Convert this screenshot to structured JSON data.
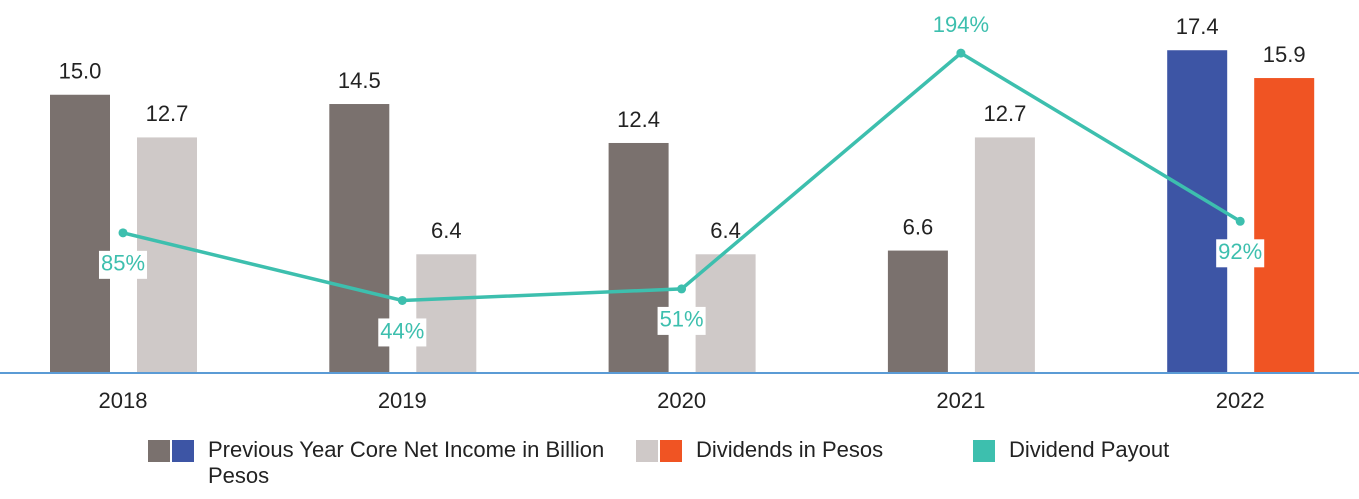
{
  "chart_data": {
    "type": "bar-line",
    "categories": [
      "2018",
      "2019",
      "2020",
      "2021",
      "2022"
    ],
    "series": [
      {
        "name": "Previous Year Core Net Income in Billion Pesos",
        "type": "bar",
        "colors": [
          "#7a716e",
          "#7a716e",
          "#7a716e",
          "#7a716e",
          "#3d55a5"
        ],
        "values": [
          15.0,
          14.5,
          12.4,
          6.6,
          17.4
        ],
        "value_labels": [
          "15.0",
          "14.5",
          "12.4",
          "6.6",
          "17.4"
        ]
      },
      {
        "name": "Dividends in Pesos",
        "type": "bar",
        "colors": [
          "#cfc9c8",
          "#cfc9c8",
          "#cfc9c8",
          "#cfc9c8",
          "#f05423"
        ],
        "values": [
          12.7,
          6.4,
          6.4,
          12.7,
          15.9
        ],
        "value_labels": [
          "12.7",
          "6.4",
          "6.4",
          "12.7",
          "15.9"
        ]
      },
      {
        "name": "Dividend Payout",
        "type": "line",
        "axis": "y2",
        "color": "#3dbfae",
        "values": [
          85,
          44,
          51,
          194,
          92
        ],
        "value_labels": [
          "85%",
          "44%",
          "51%",
          "194%",
          "92%"
        ]
      }
    ],
    "ylim": [
      0,
      20
    ],
    "y2lim": [
      0,
      225
    ]
  }
}
